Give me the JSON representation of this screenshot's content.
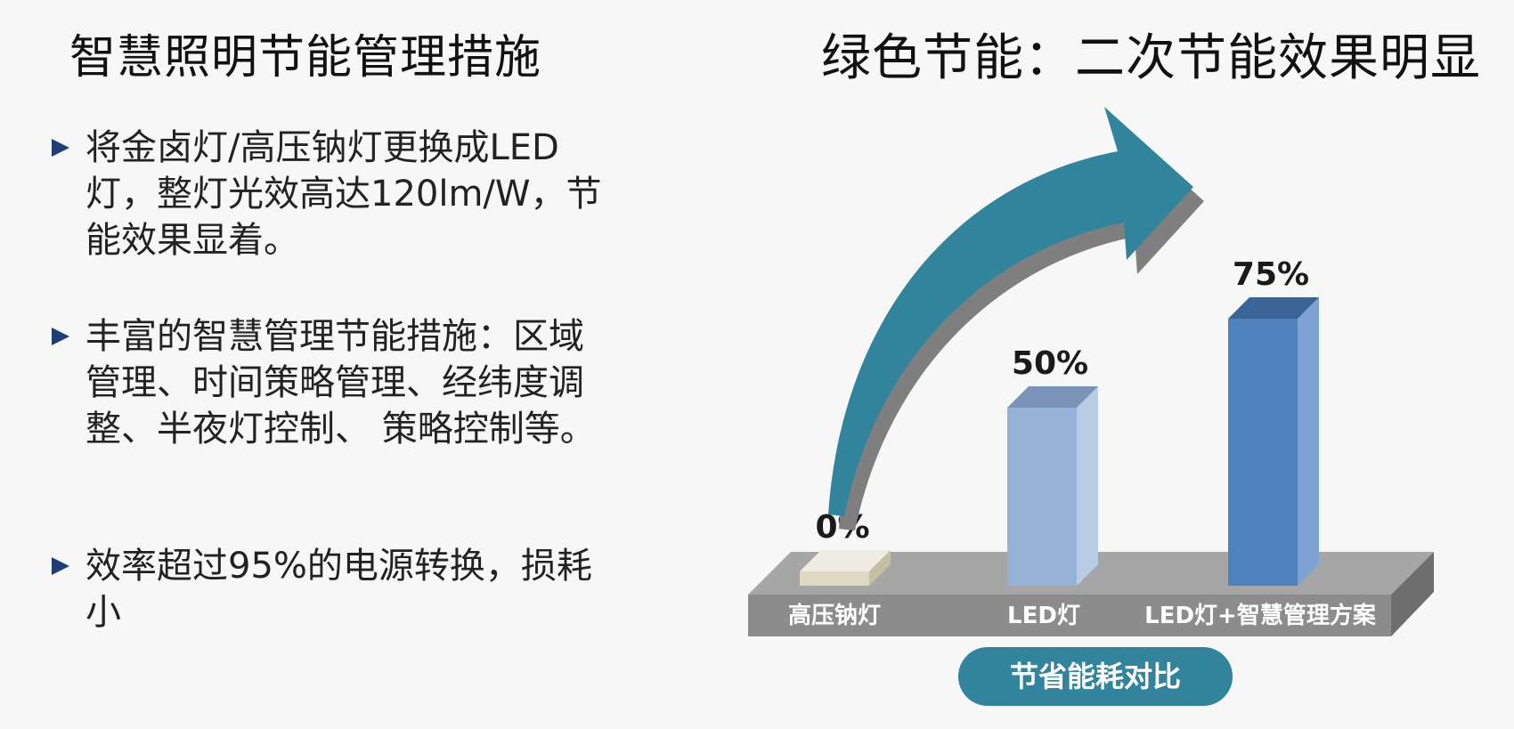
{
  "left": {
    "title": "智慧照明节能管理措施",
    "bullets": [
      "将金卤灯/高压钠灯更换成LED灯，整灯光效高达120lm/W，节能效果显着。",
      "丰富的智慧管理节能措施：区域管理、时间策略管理、经纬度调整、半夜灯控制、 策略控制等。",
      "效率超过95%的电源转换，损耗小"
    ]
  },
  "right": {
    "title": "绿色节能：二次节能效果明显",
    "footer_label": "节省能耗对比"
  },
  "chart_data": {
    "type": "bar",
    "categories": [
      "高压钠灯",
      "LED灯",
      "LED灯+智慧管理方案"
    ],
    "values": [
      0,
      50,
      75
    ],
    "value_labels": [
      "0%",
      "50%",
      "75%"
    ],
    "ylim": [
      0,
      100
    ],
    "title": "绿色节能：二次节能效果明显",
    "xlabel": "节省能耗对比",
    "ylabel": "",
    "colors": {
      "bars": [
        "#ddd9c3",
        "#95b3d7",
        "#4f81bd"
      ],
      "bar_tops": [
        "#eeece1",
        "#7a93b7",
        "#3a6596"
      ],
      "bar_sides": [
        "#c4bfa3",
        "#b7cde6",
        "#7ea2d3"
      ],
      "base_top": "#a6a6a6",
      "base_front": "#8c8c8c",
      "base_side": "#6e6e6e",
      "arrow": "#31849b",
      "arrow_shadow": "#7f7f7f",
      "footer_pill": "#31849b"
    }
  }
}
